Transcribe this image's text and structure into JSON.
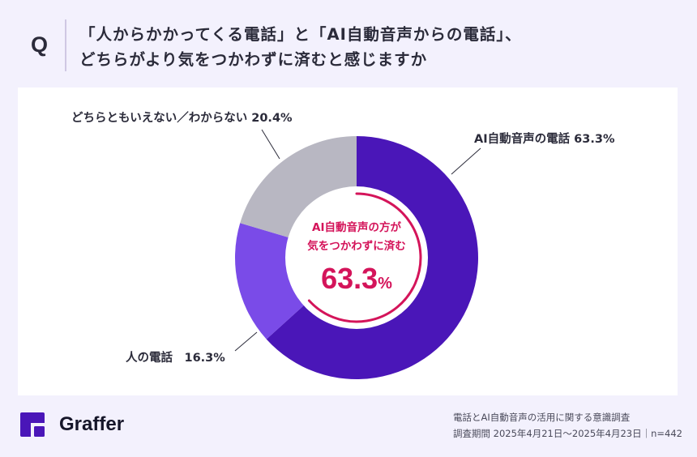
{
  "header": {
    "q_mark": "Q",
    "title_line1": "「人からかかってくる電話」と「AI自動音声からの電話」、",
    "title_line2": "どちらがより気をつかわずに済むと感じますか"
  },
  "chart_data": {
    "type": "pie",
    "variant": "donut",
    "title": "「人からかかってくる電話」と「AI自動音声からの電話」、どちらがより気をつかわずに済むと感じますか",
    "categories": [
      "AI自動音声の電話",
      "人の電話",
      "どちらともいえない／わからない"
    ],
    "values": [
      63.3,
      16.3,
      20.4
    ],
    "unit": "%",
    "colors": [
      "#4a16b8",
      "#7a4be8",
      "#b8b7c2"
    ],
    "start_angle": "12 o'clock, clockwise",
    "center_annotation": {
      "line1": "AI自動音声の方が",
      "line2": "気をつかわずに済む",
      "value": "63.3",
      "unit": "%"
    },
    "n": 442
  },
  "labels": {
    "ai": "AI自動音声の電話 63.3%",
    "human": "人の電話　16.3%",
    "neither": "どちらともいえない／わからない 20.4%"
  },
  "colors": {
    "background": "#f3f1fd",
    "card": "#ffffff",
    "accent_magenta": "#d4145a",
    "brand_purple": "#4a16b8"
  },
  "brand": {
    "name": "Graffer"
  },
  "footer": {
    "survey_name": "電話とAI自動音声の活用に関する意識調査",
    "survey_period": "調査期間 2025年4月21日〜2025年4月23日｜n=442"
  }
}
